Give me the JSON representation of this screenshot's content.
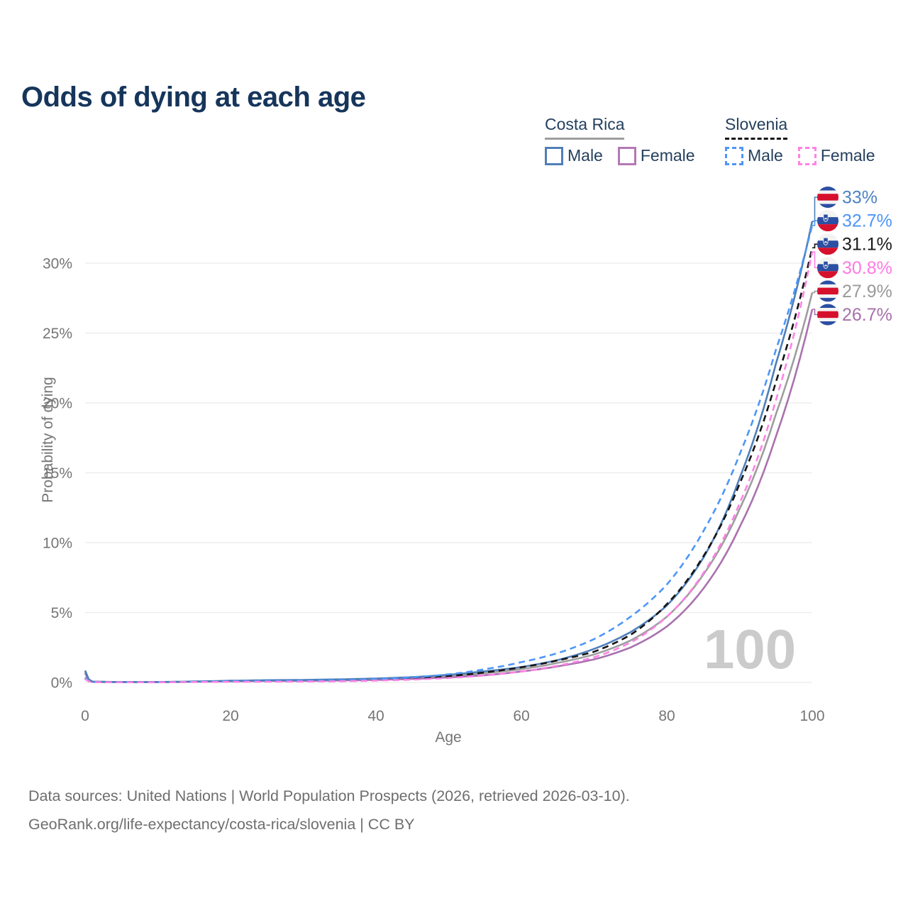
{
  "header": {
    "title": "Odds of dying at each age"
  },
  "legend": {
    "groups": [
      {
        "country": "Costa Rica",
        "underline_style": "solid",
        "underline_color": "#9e9e9e",
        "items": [
          {
            "label": "Male",
            "color": "#4f7fb8",
            "dashed": false
          },
          {
            "label": "Female",
            "color": "#b379b4",
            "dashed": false
          }
        ]
      },
      {
        "country": "Slovenia",
        "underline_style": "dashed",
        "underline_color": "#141414",
        "items": [
          {
            "label": "Male",
            "color": "#4d96f8",
            "dashed": true
          },
          {
            "label": "Female",
            "color": "#ff82e6",
            "dashed": true
          }
        ]
      }
    ]
  },
  "watermark": {
    "value": "100"
  },
  "footer": {
    "line1": "Data sources: United Nations | World Population Prospects (2026, retrieved 2026-03-10).",
    "line2": "GeoRank.org/life-expectancy/costa-rica/slovenia | CC BY"
  },
  "chart_data": {
    "type": "line",
    "title": "Odds of dying at each age",
    "xlabel": "Age",
    "ylabel": "Probability of dying",
    "xlim": [
      0,
      100
    ],
    "ylim": [
      0,
      33.5
    ],
    "grid": true,
    "legend_position": "top-right",
    "x_ticks": [
      0,
      20,
      40,
      60,
      80,
      100
    ],
    "y_ticks": [
      {
        "value": 0,
        "label": "0%"
      },
      {
        "value": 5,
        "label": "5%"
      },
      {
        "value": 10,
        "label": "10%"
      },
      {
        "value": 15,
        "label": "15%"
      },
      {
        "value": 20,
        "label": "20%"
      },
      {
        "value": 25,
        "label": "25%"
      },
      {
        "value": 30,
        "label": "30%"
      }
    ],
    "ages": [
      0,
      1,
      5,
      10,
      15,
      20,
      25,
      30,
      35,
      40,
      45,
      50,
      55,
      60,
      65,
      70,
      75,
      80,
      85,
      90,
      95,
      100
    ],
    "series": [
      {
        "name": "Costa Rica Male",
        "country": "costa-rica",
        "sex": "male",
        "style": "solid",
        "color": "#4f7fb8",
        "label_color": "#4d82c4",
        "end_label": "33%",
        "end_value": 33.0,
        "values": [
          0.85,
          0.06,
          0.03,
          0.03,
          0.07,
          0.12,
          0.16,
          0.18,
          0.22,
          0.28,
          0.38,
          0.55,
          0.8,
          1.1,
          1.6,
          2.4,
          3.6,
          5.5,
          8.9,
          14.6,
          22.8,
          33.0
        ]
      },
      {
        "name": "Slovenia Male",
        "country": "slovenia",
        "sex": "male",
        "style": "dashed",
        "color": "#4d96f8",
        "label_color": "#4d96f8",
        "end_label": "32.7%",
        "end_value": 32.7,
        "values": [
          0.35,
          0.03,
          0.02,
          0.02,
          0.05,
          0.09,
          0.11,
          0.13,
          0.16,
          0.23,
          0.36,
          0.58,
          0.95,
          1.45,
          2.1,
          3.1,
          4.7,
          7.0,
          10.8,
          16.3,
          23.8,
          32.7
        ]
      },
      {
        "name": "Slovenia",
        "country": "slovenia",
        "sex": "both",
        "style": "dashed",
        "color": "#141414",
        "label_color": "#1a1a1a",
        "end_label": "31.1%",
        "end_value": 31.1,
        "values": [
          0.3,
          0.03,
          0.015,
          0.015,
          0.04,
          0.07,
          0.08,
          0.09,
          0.12,
          0.18,
          0.28,
          0.45,
          0.72,
          1.08,
          1.58,
          2.2,
          3.4,
          5.6,
          9.0,
          14.2,
          21.5,
          31.1
        ]
      },
      {
        "name": "Slovenia Female",
        "country": "slovenia",
        "sex": "female",
        "style": "dashed",
        "color": "#ff82e6",
        "label_color": "#ff7ae3",
        "end_label": "30.8%",
        "end_value": 30.8,
        "values": [
          0.25,
          0.02,
          0.01,
          0.01,
          0.03,
          0.04,
          0.05,
          0.06,
          0.08,
          0.13,
          0.2,
          0.32,
          0.5,
          0.78,
          1.2,
          1.8,
          2.85,
          4.7,
          7.8,
          12.8,
          20.2,
          30.8
        ]
      },
      {
        "name": "Costa Rica",
        "country": "costa-rica",
        "sex": "both",
        "style": "solid",
        "color": "#9e9e9e",
        "label_color": "#9a9a9a",
        "end_label": "27.9%",
        "end_value": 27.9,
        "values": [
          0.75,
          0.05,
          0.025,
          0.025,
          0.06,
          0.1,
          0.13,
          0.15,
          0.18,
          0.23,
          0.31,
          0.46,
          0.67,
          0.95,
          1.4,
          2.0,
          3.0,
          4.7,
          7.7,
          12.4,
          19.2,
          27.9
        ]
      },
      {
        "name": "Costa Rica Female",
        "country": "costa-rica",
        "sex": "female",
        "style": "solid",
        "color": "#a972ae",
        "label_color": "#a671aa",
        "end_label": "26.7%",
        "end_value": 26.7,
        "values": [
          0.65,
          0.04,
          0.02,
          0.02,
          0.05,
          0.08,
          0.1,
          0.11,
          0.14,
          0.18,
          0.25,
          0.36,
          0.52,
          0.78,
          1.15,
          1.65,
          2.5,
          4.0,
          6.7,
          11.1,
          17.6,
          26.7
        ]
      }
    ],
    "flag_colors": {
      "blue": "#2b4fa2",
      "red": "#d6112d",
      "white": "#f3f3f3"
    }
  }
}
